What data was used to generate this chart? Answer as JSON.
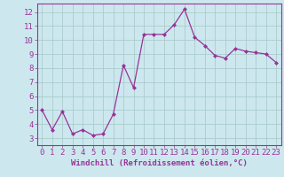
{
  "x": [
    0,
    1,
    2,
    3,
    4,
    5,
    6,
    7,
    8,
    9,
    10,
    11,
    12,
    13,
    14,
    15,
    16,
    17,
    18,
    19,
    20,
    21,
    22,
    23
  ],
  "y": [
    5.0,
    3.6,
    4.9,
    3.3,
    3.6,
    3.2,
    3.3,
    4.7,
    8.2,
    6.6,
    10.4,
    10.4,
    10.4,
    11.1,
    12.2,
    10.2,
    9.6,
    8.9,
    8.7,
    9.4,
    9.2,
    9.1,
    9.0,
    8.4
  ],
  "line_color": "#993399",
  "marker": "D",
  "marker_size": 2.0,
  "line_width": 0.9,
  "bg_color": "#cce8ee",
  "grid_color": "#aacccc",
  "xlabel": "Windchill (Refroidissement éolien,°C)",
  "xlabel_color": "#993399",
  "tick_color": "#993399",
  "label_color": "#993399",
  "ylim": [
    2.5,
    12.6
  ],
  "yticks": [
    3,
    4,
    5,
    6,
    7,
    8,
    9,
    10,
    11,
    12
  ],
  "xlim": [
    -0.5,
    23.5
  ],
  "xticks": [
    0,
    1,
    2,
    3,
    4,
    5,
    6,
    7,
    8,
    9,
    10,
    11,
    12,
    13,
    14,
    15,
    16,
    17,
    18,
    19,
    20,
    21,
    22,
    23
  ],
  "font_family": "monospace",
  "xlabel_fontsize": 6.5,
  "tick_fontsize": 6.5,
  "fig_width": 3.2,
  "fig_height": 2.0,
  "dpi": 100
}
